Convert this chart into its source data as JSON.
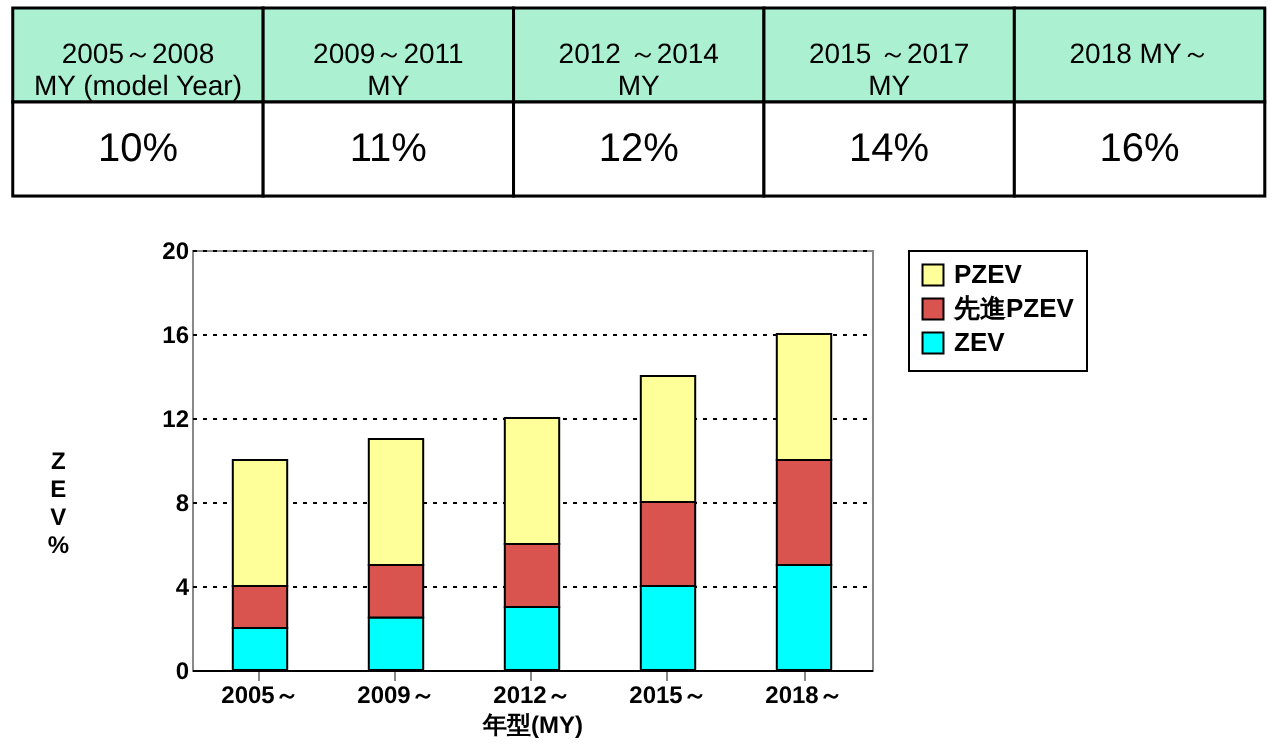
{
  "chart_data": [
    {
      "type": "other",
      "categories": [
        "2005～2008\nMY (model Year)",
        "2009～2011\nMY",
        "2012 ～2014\nMY",
        "2015 ～2017\nMY",
        "2018 MY～"
      ],
      "value_labels": [
        "10%",
        "11%",
        "12%",
        "14%",
        "16%"
      ]
    },
    {
      "type": "bar",
      "stacked": true,
      "xlabel": "年型(MY)",
      "ylabel": "ZEV%",
      "categories": [
        "2005～",
        "2009～",
        "2012～",
        "2015～",
        "2018～"
      ],
      "series": [
        {
          "name": "ZEV",
          "color": "#00ffff",
          "values": [
            2,
            2.5,
            3,
            4,
            5
          ]
        },
        {
          "name": "先進PZEV",
          "color": "#d9534f",
          "values": [
            2,
            2.5,
            3,
            4,
            5
          ]
        },
        {
          "name": "PZEV",
          "color": "#ffff99",
          "values": [
            6,
            6,
            6,
            6,
            6
          ]
        }
      ],
      "ylim": [
        0,
        20
      ],
      "yticks": [
        0,
        4,
        8,
        12,
        16,
        20
      ],
      "grid": "y",
      "legend": "right"
    }
  ]
}
